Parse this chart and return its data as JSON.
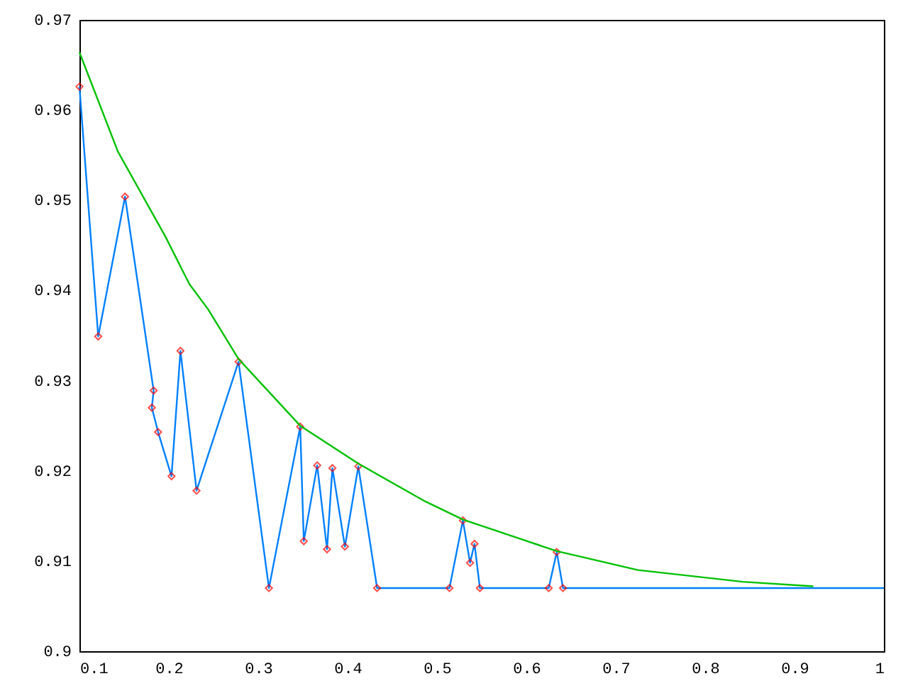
{
  "chart_data": {
    "type": "line",
    "xlim": [
      0.1,
      1
    ],
    "ylim": [
      0.9,
      0.97
    ],
    "xticks": [
      0.1,
      0.2,
      0.3,
      0.4,
      0.5,
      0.6,
      0.7,
      0.8,
      0.9,
      1
    ],
    "yticks": [
      0.9,
      0.91,
      0.92,
      0.93,
      0.94,
      0.95,
      0.96,
      0.97
    ],
    "grid": false,
    "series": [
      {
        "color": "#0080ff",
        "marker": "none",
        "line_style": "solid",
        "x": [
          0.1,
          0.121,
          0.151,
          0.183,
          0.181,
          0.188,
          0.203,
          0.213,
          0.231,
          0.278,
          0.312,
          0.347,
          0.351,
          0.366,
          0.377,
          0.383,
          0.397,
          0.412,
          0.433,
          0.514,
          0.529,
          0.537,
          0.542,
          0.548,
          0.625,
          0.634,
          0.641,
          1
        ],
        "values": [
          0.9626,
          0.9349,
          0.9504,
          0.9289,
          0.927,
          0.9243,
          0.9194,
          0.9333,
          0.9178,
          0.9321,
          0.907,
          0.9249,
          0.9122,
          0.9206,
          0.9113,
          0.9203,
          0.9116,
          0.9205,
          0.907,
          0.907,
          0.9145,
          0.9098,
          0.9119,
          0.907,
          0.907,
          0.911,
          0.907,
          0.907
        ]
      },
      {
        "type": "scatter",
        "color": "#ff0000",
        "marker": "diamond",
        "x": [
          0.1,
          0.121,
          0.151,
          0.183,
          0.181,
          0.188,
          0.203,
          0.213,
          0.231,
          0.278,
          0.312,
          0.347,
          0.351,
          0.366,
          0.377,
          0.383,
          0.397,
          0.412,
          0.433,
          0.514,
          0.529,
          0.537,
          0.542,
          0.548,
          0.625,
          0.634,
          0.641
        ],
        "values": [
          0.9626,
          0.9349,
          0.9504,
          0.9289,
          0.927,
          0.9243,
          0.9194,
          0.9333,
          0.9178,
          0.9321,
          0.907,
          0.9249,
          0.9122,
          0.9206,
          0.9113,
          0.9203,
          0.9116,
          0.9205,
          0.907,
          0.907,
          0.9145,
          0.9098,
          0.9119,
          0.907,
          0.907,
          0.911,
          0.907
        ]
      },
      {
        "color": "#00c000",
        "marker": "none",
        "line_style": "solid",
        "x": [
          0.1,
          0.143,
          0.196,
          0.223,
          0.244,
          0.278,
          0.347,
          0.412,
          0.487,
          0.529,
          0.634,
          0.725,
          0.842,
          0.921
        ],
        "values": [
          0.9664,
          0.9554,
          0.946,
          0.9407,
          0.9379,
          0.9324,
          0.925,
          0.9208,
          0.9166,
          0.9146,
          0.9111,
          0.909,
          0.9077,
          0.9072
        ]
      }
    ]
  }
}
